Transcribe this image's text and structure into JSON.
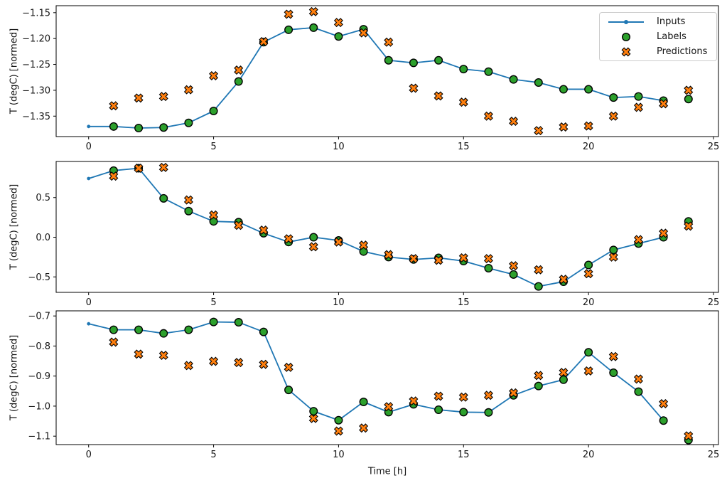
{
  "figure": {
    "colors": {
      "inputs": "#1f77b4",
      "labels": "#2ca02c",
      "predictions": "#ff7f0e",
      "marker_edge": "#000000",
      "spine": "#000000"
    },
    "legend": {
      "position": "upper-right-of-top-subplot",
      "items": [
        {
          "label": "Inputs"
        },
        {
          "label": "Labels"
        },
        {
          "label": "Predictions"
        }
      ]
    }
  },
  "chart_data": [
    {
      "type": "line+scatter",
      "title": "",
      "ylabel": "T (degC) [normed]",
      "xlabel": "",
      "grid": false,
      "xlim": [
        -1.3,
        25.2
      ],
      "ylim": [
        -1.3895,
        -1.1365
      ],
      "xticks": [
        {
          "v": 0,
          "label": "0"
        },
        {
          "v": 5,
          "label": "5"
        },
        {
          "v": 10,
          "label": "10"
        },
        {
          "v": 15,
          "label": "15"
        },
        {
          "v": 20,
          "label": "20"
        },
        {
          "v": 25,
          "label": "25"
        }
      ],
      "yticks": [
        {
          "v": -1.15,
          "label": "−1.15"
        },
        {
          "v": -1.2,
          "label": "−1.20"
        },
        {
          "v": -1.25,
          "label": "−1.25"
        },
        {
          "v": -1.3,
          "label": "−1.30"
        },
        {
          "v": -1.35,
          "label": "−1.35"
        }
      ],
      "series": [
        {
          "name": "Inputs",
          "style": "line-with-dots",
          "x": [
            0,
            1,
            2,
            3,
            4,
            5,
            6,
            7,
            8,
            9,
            10,
            11,
            12,
            13,
            14,
            15,
            16,
            17,
            18,
            19,
            20,
            21,
            22,
            23
          ],
          "values": [
            -1.37,
            -1.37,
            -1.373,
            -1.372,
            -1.363,
            -1.34,
            -1.283,
            -1.207,
            -1.183,
            -1.179,
            -1.196,
            -1.182,
            -1.242,
            -1.247,
            -1.242,
            -1.259,
            -1.264,
            -1.279,
            -1.285,
            -1.298,
            -1.298,
            -1.314,
            -1.312,
            -1.32
          ]
        },
        {
          "name": "Labels",
          "style": "scatter-circle",
          "x": [
            1,
            2,
            3,
            4,
            5,
            6,
            7,
            8,
            9,
            10,
            11,
            12,
            13,
            14,
            15,
            16,
            17,
            18,
            19,
            20,
            21,
            22,
            23,
            24
          ],
          "values": [
            -1.37,
            -1.373,
            -1.372,
            -1.363,
            -1.34,
            -1.283,
            -1.207,
            -1.183,
            -1.179,
            -1.196,
            -1.182,
            -1.242,
            -1.247,
            -1.242,
            -1.259,
            -1.264,
            -1.279,
            -1.285,
            -1.298,
            -1.298,
            -1.314,
            -1.312,
            -1.32,
            -1.317
          ]
        },
        {
          "name": "Predictions",
          "style": "scatter-x",
          "x": [
            1,
            2,
            3,
            4,
            5,
            6,
            7,
            8,
            9,
            10,
            11,
            12,
            13,
            14,
            15,
            16,
            17,
            18,
            19,
            20,
            21,
            22,
            23,
            24
          ],
          "values": [
            -1.33,
            -1.315,
            -1.312,
            -1.299,
            -1.272,
            -1.261,
            -1.206,
            -1.153,
            -1.148,
            -1.169,
            -1.189,
            -1.207,
            -1.296,
            -1.311,
            -1.323,
            -1.35,
            -1.36,
            -1.378,
            -1.371,
            -1.369,
            -1.35,
            -1.333,
            -1.326,
            -1.3
          ]
        }
      ]
    },
    {
      "type": "line+scatter",
      "title": "",
      "ylabel": "T (degC) [normed]",
      "xlabel": "",
      "grid": false,
      "xlim": [
        -1.3,
        25.2
      ],
      "ylim": [
        -0.695,
        0.955
      ],
      "xticks": [
        {
          "v": 0,
          "label": "0"
        },
        {
          "v": 5,
          "label": "5"
        },
        {
          "v": 10,
          "label": "10"
        },
        {
          "v": 15,
          "label": "15"
        },
        {
          "v": 20,
          "label": "20"
        },
        {
          "v": 25,
          "label": "25"
        }
      ],
      "yticks": [
        {
          "v": 0.5,
          "label": "0.5"
        },
        {
          "v": 0.0,
          "label": "0.0"
        },
        {
          "v": -0.5,
          "label": "−0.5"
        }
      ],
      "series": [
        {
          "name": "Inputs",
          "style": "line-with-dots",
          "x": [
            0,
            1,
            2,
            3,
            4,
            5,
            6,
            7,
            8,
            9,
            10,
            11,
            12,
            13,
            14,
            15,
            16,
            17,
            18,
            19,
            20,
            21,
            22,
            23
          ],
          "values": [
            0.74,
            0.84,
            0.87,
            0.49,
            0.33,
            0.2,
            0.19,
            0.05,
            -0.06,
            0.0,
            -0.04,
            -0.18,
            -0.25,
            -0.28,
            -0.26,
            -0.3,
            -0.39,
            -0.47,
            -0.62,
            -0.56,
            -0.35,
            -0.16,
            -0.08,
            0.0
          ]
        },
        {
          "name": "Labels",
          "style": "scatter-circle",
          "x": [
            1,
            2,
            3,
            4,
            5,
            6,
            7,
            8,
            9,
            10,
            11,
            12,
            13,
            14,
            15,
            16,
            17,
            18,
            19,
            20,
            21,
            22,
            23,
            24
          ],
          "values": [
            0.84,
            0.87,
            0.49,
            0.33,
            0.2,
            0.19,
            0.05,
            -0.06,
            0.0,
            -0.04,
            -0.18,
            -0.25,
            -0.28,
            -0.26,
            -0.3,
            -0.39,
            -0.47,
            -0.62,
            -0.56,
            -0.35,
            -0.16,
            -0.08,
            0.0,
            0.2
          ]
        },
        {
          "name": "Predictions",
          "style": "scatter-x",
          "x": [
            1,
            2,
            3,
            4,
            5,
            6,
            7,
            8,
            9,
            10,
            11,
            12,
            13,
            14,
            15,
            16,
            17,
            18,
            19,
            20,
            21,
            22,
            23,
            24
          ],
          "values": [
            0.77,
            0.87,
            0.88,
            0.47,
            0.28,
            0.15,
            0.09,
            -0.02,
            -0.12,
            -0.06,
            -0.1,
            -0.22,
            -0.27,
            -0.29,
            -0.26,
            -0.27,
            -0.36,
            -0.41,
            -0.53,
            -0.46,
            -0.25,
            -0.03,
            0.05,
            0.14
          ]
        }
      ]
    },
    {
      "type": "line+scatter",
      "title": "",
      "ylabel": "T (degC) [normed]",
      "xlabel": "Time [h]",
      "grid": false,
      "xlim": [
        -1.3,
        25.2
      ],
      "ylim": [
        -1.128,
        -0.683
      ],
      "xticks": [
        {
          "v": 0,
          "label": "0"
        },
        {
          "v": 5,
          "label": "5"
        },
        {
          "v": 10,
          "label": "10"
        },
        {
          "v": 15,
          "label": "15"
        },
        {
          "v": 20,
          "label": "20"
        },
        {
          "v": 25,
          "label": "25"
        }
      ],
      "yticks": [
        {
          "v": -0.7,
          "label": "−0.7"
        },
        {
          "v": -0.8,
          "label": "−0.8"
        },
        {
          "v": -0.9,
          "label": "−0.9"
        },
        {
          "v": -1.0,
          "label": "−1.0"
        },
        {
          "v": -1.1,
          "label": "−1.1"
        }
      ],
      "series": [
        {
          "name": "Inputs",
          "style": "line-with-dots",
          "x": [
            0,
            1,
            2,
            3,
            4,
            5,
            6,
            7,
            8,
            9,
            10,
            11,
            12,
            13,
            14,
            15,
            16,
            17,
            18,
            19,
            20,
            21,
            22,
            23
          ],
          "values": [
            -0.726,
            -0.746,
            -0.746,
            -0.758,
            -0.746,
            -0.72,
            -0.721,
            -0.753,
            -0.946,
            -1.017,
            -1.047,
            -0.986,
            -1.02,
            -0.994,
            -1.012,
            -1.02,
            -1.021,
            -0.964,
            -0.933,
            -0.912,
            -0.821,
            -0.889,
            -0.952,
            -1.048
          ]
        },
        {
          "name": "Labels",
          "style": "scatter-circle",
          "x": [
            1,
            2,
            3,
            4,
            5,
            6,
            7,
            8,
            9,
            10,
            11,
            12,
            13,
            14,
            15,
            16,
            17,
            18,
            19,
            20,
            21,
            22,
            23,
            24
          ],
          "values": [
            -0.746,
            -0.746,
            -0.758,
            -0.746,
            -0.72,
            -0.721,
            -0.753,
            -0.946,
            -1.017,
            -1.047,
            -0.986,
            -1.02,
            -0.994,
            -1.012,
            -1.02,
            -1.021,
            -0.964,
            -0.933,
            -0.912,
            -0.821,
            -0.889,
            -0.952,
            -1.048,
            -1.113
          ]
        },
        {
          "name": "Predictions",
          "style": "scatter-x",
          "x": [
            1,
            2,
            3,
            4,
            5,
            6,
            7,
            8,
            9,
            10,
            11,
            12,
            13,
            14,
            15,
            16,
            17,
            18,
            19,
            20,
            21,
            22,
            23,
            24
          ],
          "values": [
            -0.787,
            -0.827,
            -0.831,
            -0.865,
            -0.851,
            -0.855,
            -0.861,
            -0.871,
            -1.041,
            -1.083,
            -1.073,
            -1.002,
            -0.983,
            -0.967,
            -0.97,
            -0.964,
            -0.956,
            -0.898,
            -0.888,
            -0.883,
            -0.835,
            -0.91,
            -0.992,
            -1.099
          ]
        }
      ]
    }
  ]
}
